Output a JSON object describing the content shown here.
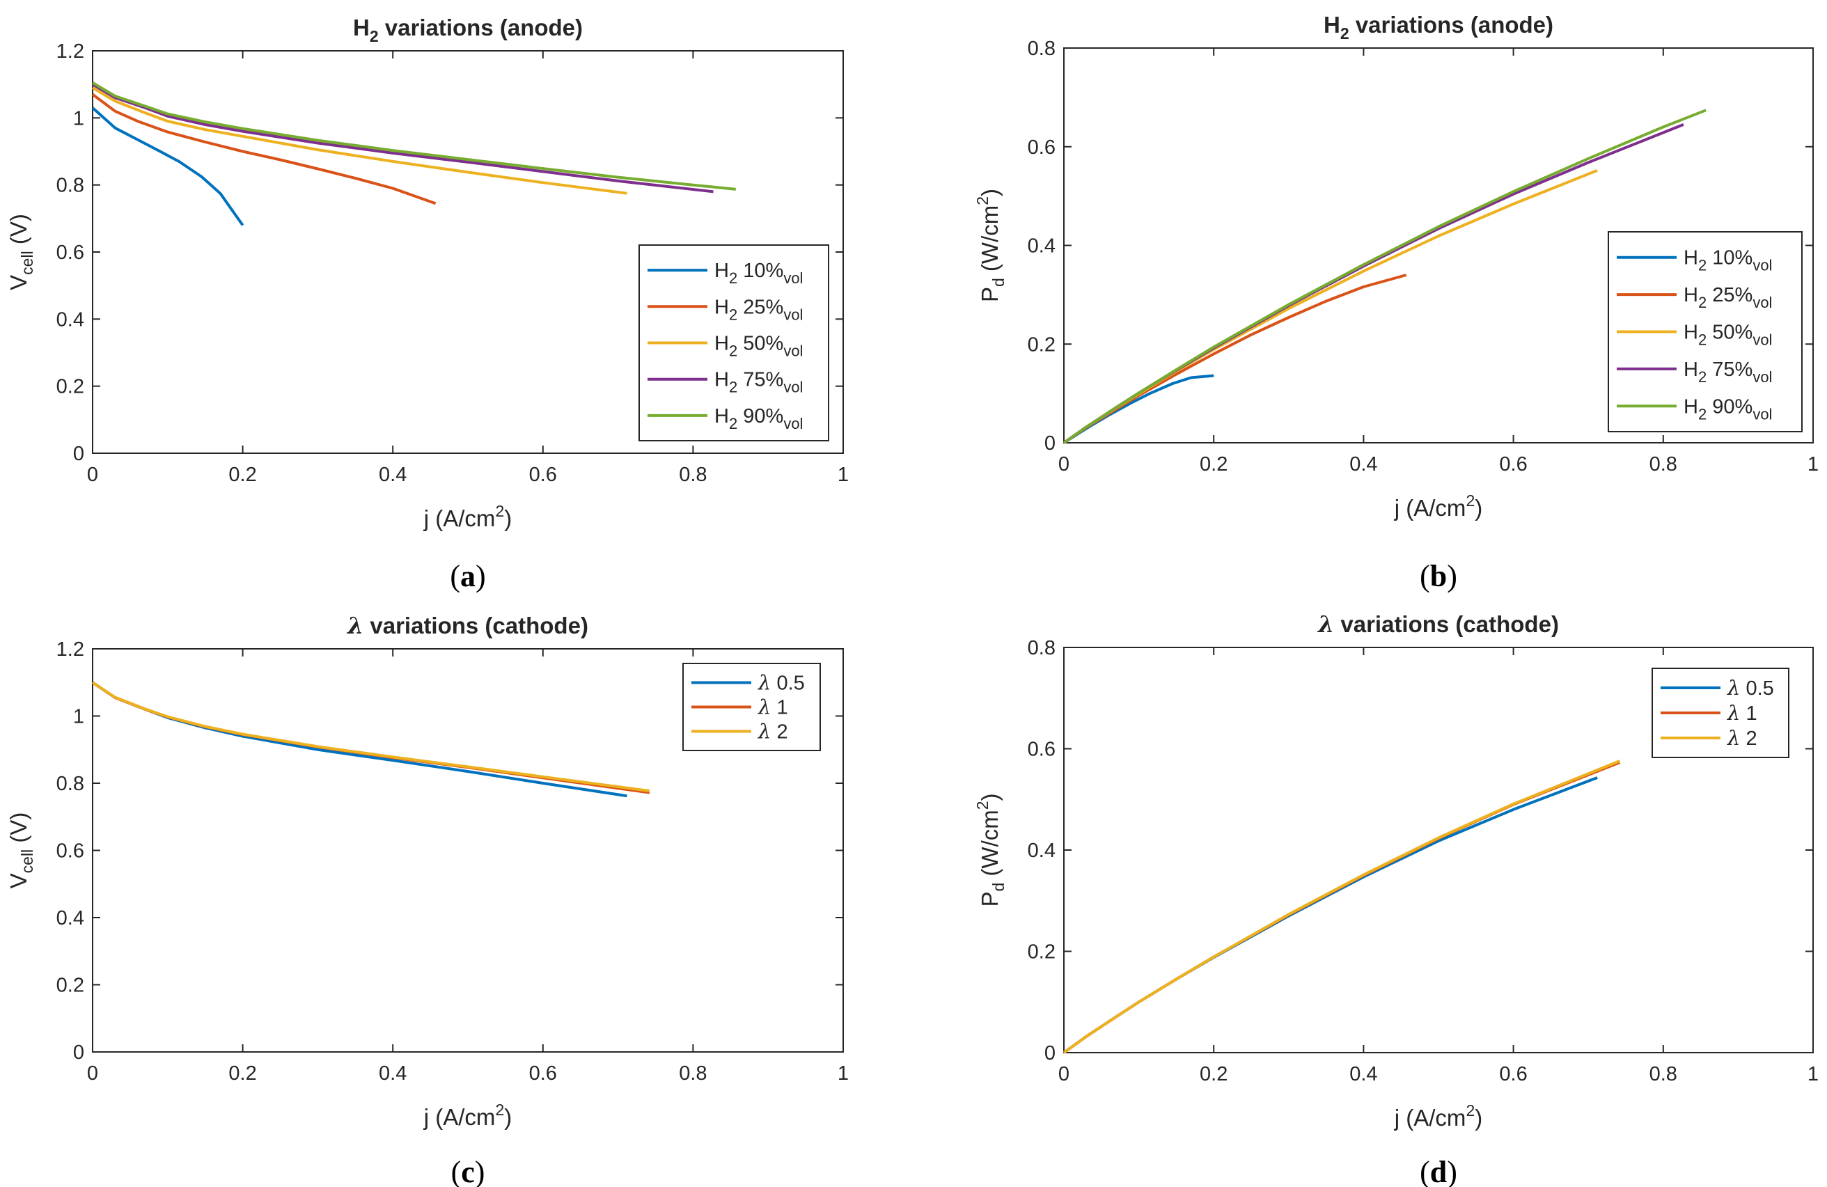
{
  "colors": {
    "blue": "#0072BD",
    "orange": "#D95319",
    "yellow": "#EDB120",
    "purple": "#7E2F8E",
    "green": "#77AC30",
    "axis": "#262626"
  },
  "chart_data": [
    {
      "id": "a",
      "type": "line",
      "panel_label": "(a)",
      "panel_letter": "a",
      "title": "H2 variations (anode)",
      "xlabel": "j (A/cm2)",
      "ylabel": "Vcell (V)",
      "xlim": [
        0,
        1
      ],
      "ylim": [
        0,
        1.2
      ],
      "xticks": [
        0,
        0.2,
        0.4,
        0.6,
        0.8,
        1
      ],
      "xtick_labels": [
        "0",
        "0.2",
        "0.4",
        "0.6",
        "0.8",
        "1"
      ],
      "yticks": [
        0,
        0.2,
        0.4,
        0.6,
        0.8,
        1,
        1.2
      ],
      "ytick_labels": [
        "0",
        "0.2",
        "0.4",
        "0.6",
        "0.8",
        "1",
        "1.2"
      ],
      "grid": false,
      "legend_position": "lower-right",
      "series": [
        {
          "name": "H2 10%vol",
          "legend_main": "H",
          "legend_sub1": "2",
          "legend_mid": " 10%",
          "legend_sub2": "vol",
          "color": "#0072BD",
          "x": [
            0,
            0.03,
            0.06,
            0.09,
            0.115,
            0.145,
            0.17,
            0.2
          ],
          "y": [
            1.03,
            0.97,
            0.935,
            0.9,
            0.87,
            0.825,
            0.775,
            0.68
          ]
        },
        {
          "name": "H2 25%vol",
          "legend_main": "H",
          "legend_sub1": "2",
          "legend_mid": " 25%",
          "legend_sub2": "vol",
          "color": "#D95319",
          "x": [
            0,
            0.03,
            0.06,
            0.1,
            0.15,
            0.2,
            0.25,
            0.3,
            0.35,
            0.4,
            0.457
          ],
          "y": [
            1.07,
            1.02,
            0.99,
            0.958,
            0.928,
            0.9,
            0.875,
            0.848,
            0.82,
            0.79,
            0.745
          ]
        },
        {
          "name": "H2 50%vol",
          "legend_main": "H",
          "legend_sub1": "2",
          "legend_mid": " 50%",
          "legend_sub2": "vol",
          "color": "#EDB120",
          "x": [
            0,
            0.03,
            0.07,
            0.1,
            0.15,
            0.2,
            0.3,
            0.4,
            0.5,
            0.6,
            0.712
          ],
          "y": [
            1.09,
            1.05,
            1.015,
            0.99,
            0.965,
            0.945,
            0.905,
            0.87,
            0.838,
            0.807,
            0.775
          ]
        },
        {
          "name": "H2 75%vol",
          "legend_main": "H",
          "legend_sub1": "2",
          "legend_mid": " 75%",
          "legend_sub2": "vol",
          "color": "#7E2F8E",
          "x": [
            0,
            0.03,
            0.07,
            0.1,
            0.15,
            0.2,
            0.3,
            0.4,
            0.5,
            0.6,
            0.7,
            0.827
          ],
          "y": [
            1.1,
            1.06,
            1.03,
            1.005,
            0.98,
            0.96,
            0.925,
            0.895,
            0.868,
            0.84,
            0.812,
            0.78
          ]
        },
        {
          "name": "H2 90%vol",
          "legend_main": "H",
          "legend_sub1": "2",
          "legend_mid": " 90%",
          "legend_sub2": "vol",
          "color": "#77AC30",
          "x": [
            0,
            0.03,
            0.07,
            0.1,
            0.15,
            0.2,
            0.3,
            0.4,
            0.5,
            0.6,
            0.7,
            0.8,
            0.857
          ],
          "y": [
            1.105,
            1.065,
            1.035,
            1.012,
            0.988,
            0.968,
            0.933,
            0.903,
            0.876,
            0.849,
            0.823,
            0.8,
            0.787
          ]
        }
      ]
    },
    {
      "id": "b",
      "type": "line",
      "panel_label": "(b)",
      "panel_letter": "b",
      "title": "H2 variations (anode)",
      "xlabel": "j (A/cm2)",
      "ylabel": "Pd (W/cm2)",
      "xlim": [
        0,
        1
      ],
      "ylim": [
        0,
        0.8
      ],
      "xticks": [
        0,
        0.2,
        0.4,
        0.6,
        0.8,
        1
      ],
      "xtick_labels": [
        "0",
        "0.2",
        "0.4",
        "0.6",
        "0.8",
        "1"
      ],
      "yticks": [
        0,
        0.2,
        0.4,
        0.6,
        0.8
      ],
      "ytick_labels": [
        "0",
        "0.2",
        "0.4",
        "0.6",
        "0.8"
      ],
      "grid": false,
      "legend_position": "lower-right",
      "series": [
        {
          "name": "H2 10%vol",
          "legend_main": "H",
          "legend_sub1": "2",
          "legend_mid": " 10%",
          "legend_sub2": "vol",
          "color": "#0072BD",
          "x": [
            0,
            0.03,
            0.06,
            0.09,
            0.115,
            0.145,
            0.17,
            0.2
          ],
          "y": [
            0,
            0.029,
            0.056,
            0.081,
            0.1,
            0.12,
            0.132,
            0.136
          ]
        },
        {
          "name": "H2 25%vol",
          "legend_main": "H",
          "legend_sub1": "2",
          "legend_mid": " 25%",
          "legend_sub2": "vol",
          "color": "#D95319",
          "x": [
            0,
            0.03,
            0.06,
            0.1,
            0.15,
            0.2,
            0.25,
            0.3,
            0.35,
            0.4,
            0.457
          ],
          "y": [
            0,
            0.031,
            0.059,
            0.096,
            0.139,
            0.18,
            0.219,
            0.254,
            0.287,
            0.316,
            0.34
          ]
        },
        {
          "name": "H2 50%vol",
          "legend_main": "H",
          "legend_sub1": "2",
          "legend_mid": " 50%",
          "legend_sub2": "vol",
          "color": "#EDB120",
          "x": [
            0,
            0.03,
            0.07,
            0.1,
            0.15,
            0.2,
            0.3,
            0.4,
            0.5,
            0.6,
            0.712
          ],
          "y": [
            0,
            0.032,
            0.071,
            0.099,
            0.145,
            0.189,
            0.272,
            0.348,
            0.419,
            0.484,
            0.552
          ]
        },
        {
          "name": "H2 75%vol",
          "legend_main": "H",
          "legend_sub1": "2",
          "legend_mid": " 75%",
          "legend_sub2": "vol",
          "color": "#7E2F8E",
          "x": [
            0,
            0.03,
            0.07,
            0.1,
            0.15,
            0.2,
            0.3,
            0.4,
            0.5,
            0.6,
            0.7,
            0.827
          ],
          "y": [
            0,
            0.032,
            0.072,
            0.101,
            0.147,
            0.192,
            0.278,
            0.358,
            0.434,
            0.504,
            0.568,
            0.645
          ]
        },
        {
          "name": "H2 90%vol",
          "legend_main": "H",
          "legend_sub1": "2",
          "legend_mid": " 90%",
          "legend_sub2": "vol",
          "color": "#77AC30",
          "x": [
            0,
            0.03,
            0.07,
            0.1,
            0.15,
            0.2,
            0.3,
            0.4,
            0.5,
            0.6,
            0.7,
            0.8,
            0.857
          ],
          "y": [
            0,
            0.032,
            0.072,
            0.101,
            0.148,
            0.194,
            0.28,
            0.361,
            0.438,
            0.509,
            0.576,
            0.64,
            0.674
          ]
        }
      ]
    },
    {
      "id": "c",
      "type": "line",
      "panel_label": "(c)",
      "panel_letter": "c",
      "title": "λ variations (cathode)",
      "xlabel": "j (A/cm2)",
      "ylabel": "Vcell (V)",
      "xlim": [
        0,
        1
      ],
      "ylim": [
        0,
        1.2
      ],
      "xticks": [
        0,
        0.2,
        0.4,
        0.6,
        0.8,
        1
      ],
      "xtick_labels": [
        "0",
        "0.2",
        "0.4",
        "0.6",
        "0.8",
        "1"
      ],
      "yticks": [
        0,
        0.2,
        0.4,
        0.6,
        0.8,
        1,
        1.2
      ],
      "ytick_labels": [
        "0",
        "0.2",
        "0.4",
        "0.6",
        "0.8",
        "1",
        "1.2"
      ],
      "grid": false,
      "legend_position": "top-right",
      "series": [
        {
          "name": "λ 0.5",
          "legend_main": "λ",
          "legend_mid": " 0.5",
          "color": "#0072BD",
          "x": [
            0,
            0.03,
            0.07,
            0.1,
            0.15,
            0.2,
            0.3,
            0.4,
            0.5,
            0.6,
            0.712
          ],
          "y": [
            1.1,
            1.055,
            1.02,
            0.995,
            0.965,
            0.94,
            0.9,
            0.868,
            0.835,
            0.8,
            0.762
          ]
        },
        {
          "name": "λ 1",
          "legend_main": "λ",
          "legend_mid": " 1",
          "color": "#D95319",
          "x": [
            0,
            0.03,
            0.07,
            0.1,
            0.15,
            0.2,
            0.3,
            0.4,
            0.5,
            0.6,
            0.742
          ],
          "y": [
            1.1,
            1.055,
            1.02,
            0.997,
            0.968,
            0.945,
            0.908,
            0.876,
            0.847,
            0.816,
            0.772
          ]
        },
        {
          "name": "λ 2",
          "legend_main": "λ",
          "legend_mid": " 2",
          "color": "#EDB120",
          "x": [
            0,
            0.03,
            0.07,
            0.1,
            0.15,
            0.2,
            0.3,
            0.4,
            0.5,
            0.6,
            0.742
          ],
          "y": [
            1.1,
            1.056,
            1.021,
            0.998,
            0.969,
            0.946,
            0.909,
            0.878,
            0.849,
            0.819,
            0.777
          ]
        }
      ]
    },
    {
      "id": "d",
      "type": "line",
      "panel_label": "(d)",
      "panel_letter": "d",
      "title": "λ variations (cathode)",
      "xlabel": "j (A/cm2)",
      "ylabel": "Pd (W/cm2)",
      "xlim": [
        0,
        1
      ],
      "ylim": [
        0,
        0.8
      ],
      "xticks": [
        0,
        0.2,
        0.4,
        0.6,
        0.8,
        1
      ],
      "xtick_labels": [
        "0",
        "0.2",
        "0.4",
        "0.6",
        "0.8",
        "1"
      ],
      "yticks": [
        0,
        0.2,
        0.4,
        0.6,
        0.8
      ],
      "ytick_labels": [
        "0",
        "0.2",
        "0.4",
        "0.6",
        "0.8"
      ],
      "grid": false,
      "legend_position": "top-right",
      "series": [
        {
          "name": "λ 0.5",
          "legend_main": "λ",
          "legend_mid": " 0.5",
          "color": "#0072BD",
          "x": [
            0,
            0.03,
            0.07,
            0.1,
            0.15,
            0.2,
            0.3,
            0.4,
            0.5,
            0.6,
            0.712
          ],
          "y": [
            0,
            0.032,
            0.071,
            0.1,
            0.145,
            0.188,
            0.27,
            0.347,
            0.418,
            0.48,
            0.543
          ]
        },
        {
          "name": "λ 1",
          "legend_main": "λ",
          "legend_mid": " 1",
          "color": "#D95319",
          "x": [
            0,
            0.03,
            0.07,
            0.1,
            0.15,
            0.2,
            0.3,
            0.4,
            0.5,
            0.6,
            0.742
          ],
          "y": [
            0,
            0.032,
            0.071,
            0.1,
            0.145,
            0.189,
            0.272,
            0.35,
            0.423,
            0.49,
            0.573
          ]
        },
        {
          "name": "λ 2",
          "legend_main": "λ",
          "legend_mid": " 2",
          "color": "#EDB120",
          "x": [
            0,
            0.03,
            0.07,
            0.1,
            0.15,
            0.2,
            0.3,
            0.4,
            0.5,
            0.6,
            0.742
          ],
          "y": [
            0,
            0.032,
            0.071,
            0.1,
            0.145,
            0.189,
            0.273,
            0.351,
            0.424,
            0.491,
            0.576
          ]
        }
      ]
    }
  ]
}
